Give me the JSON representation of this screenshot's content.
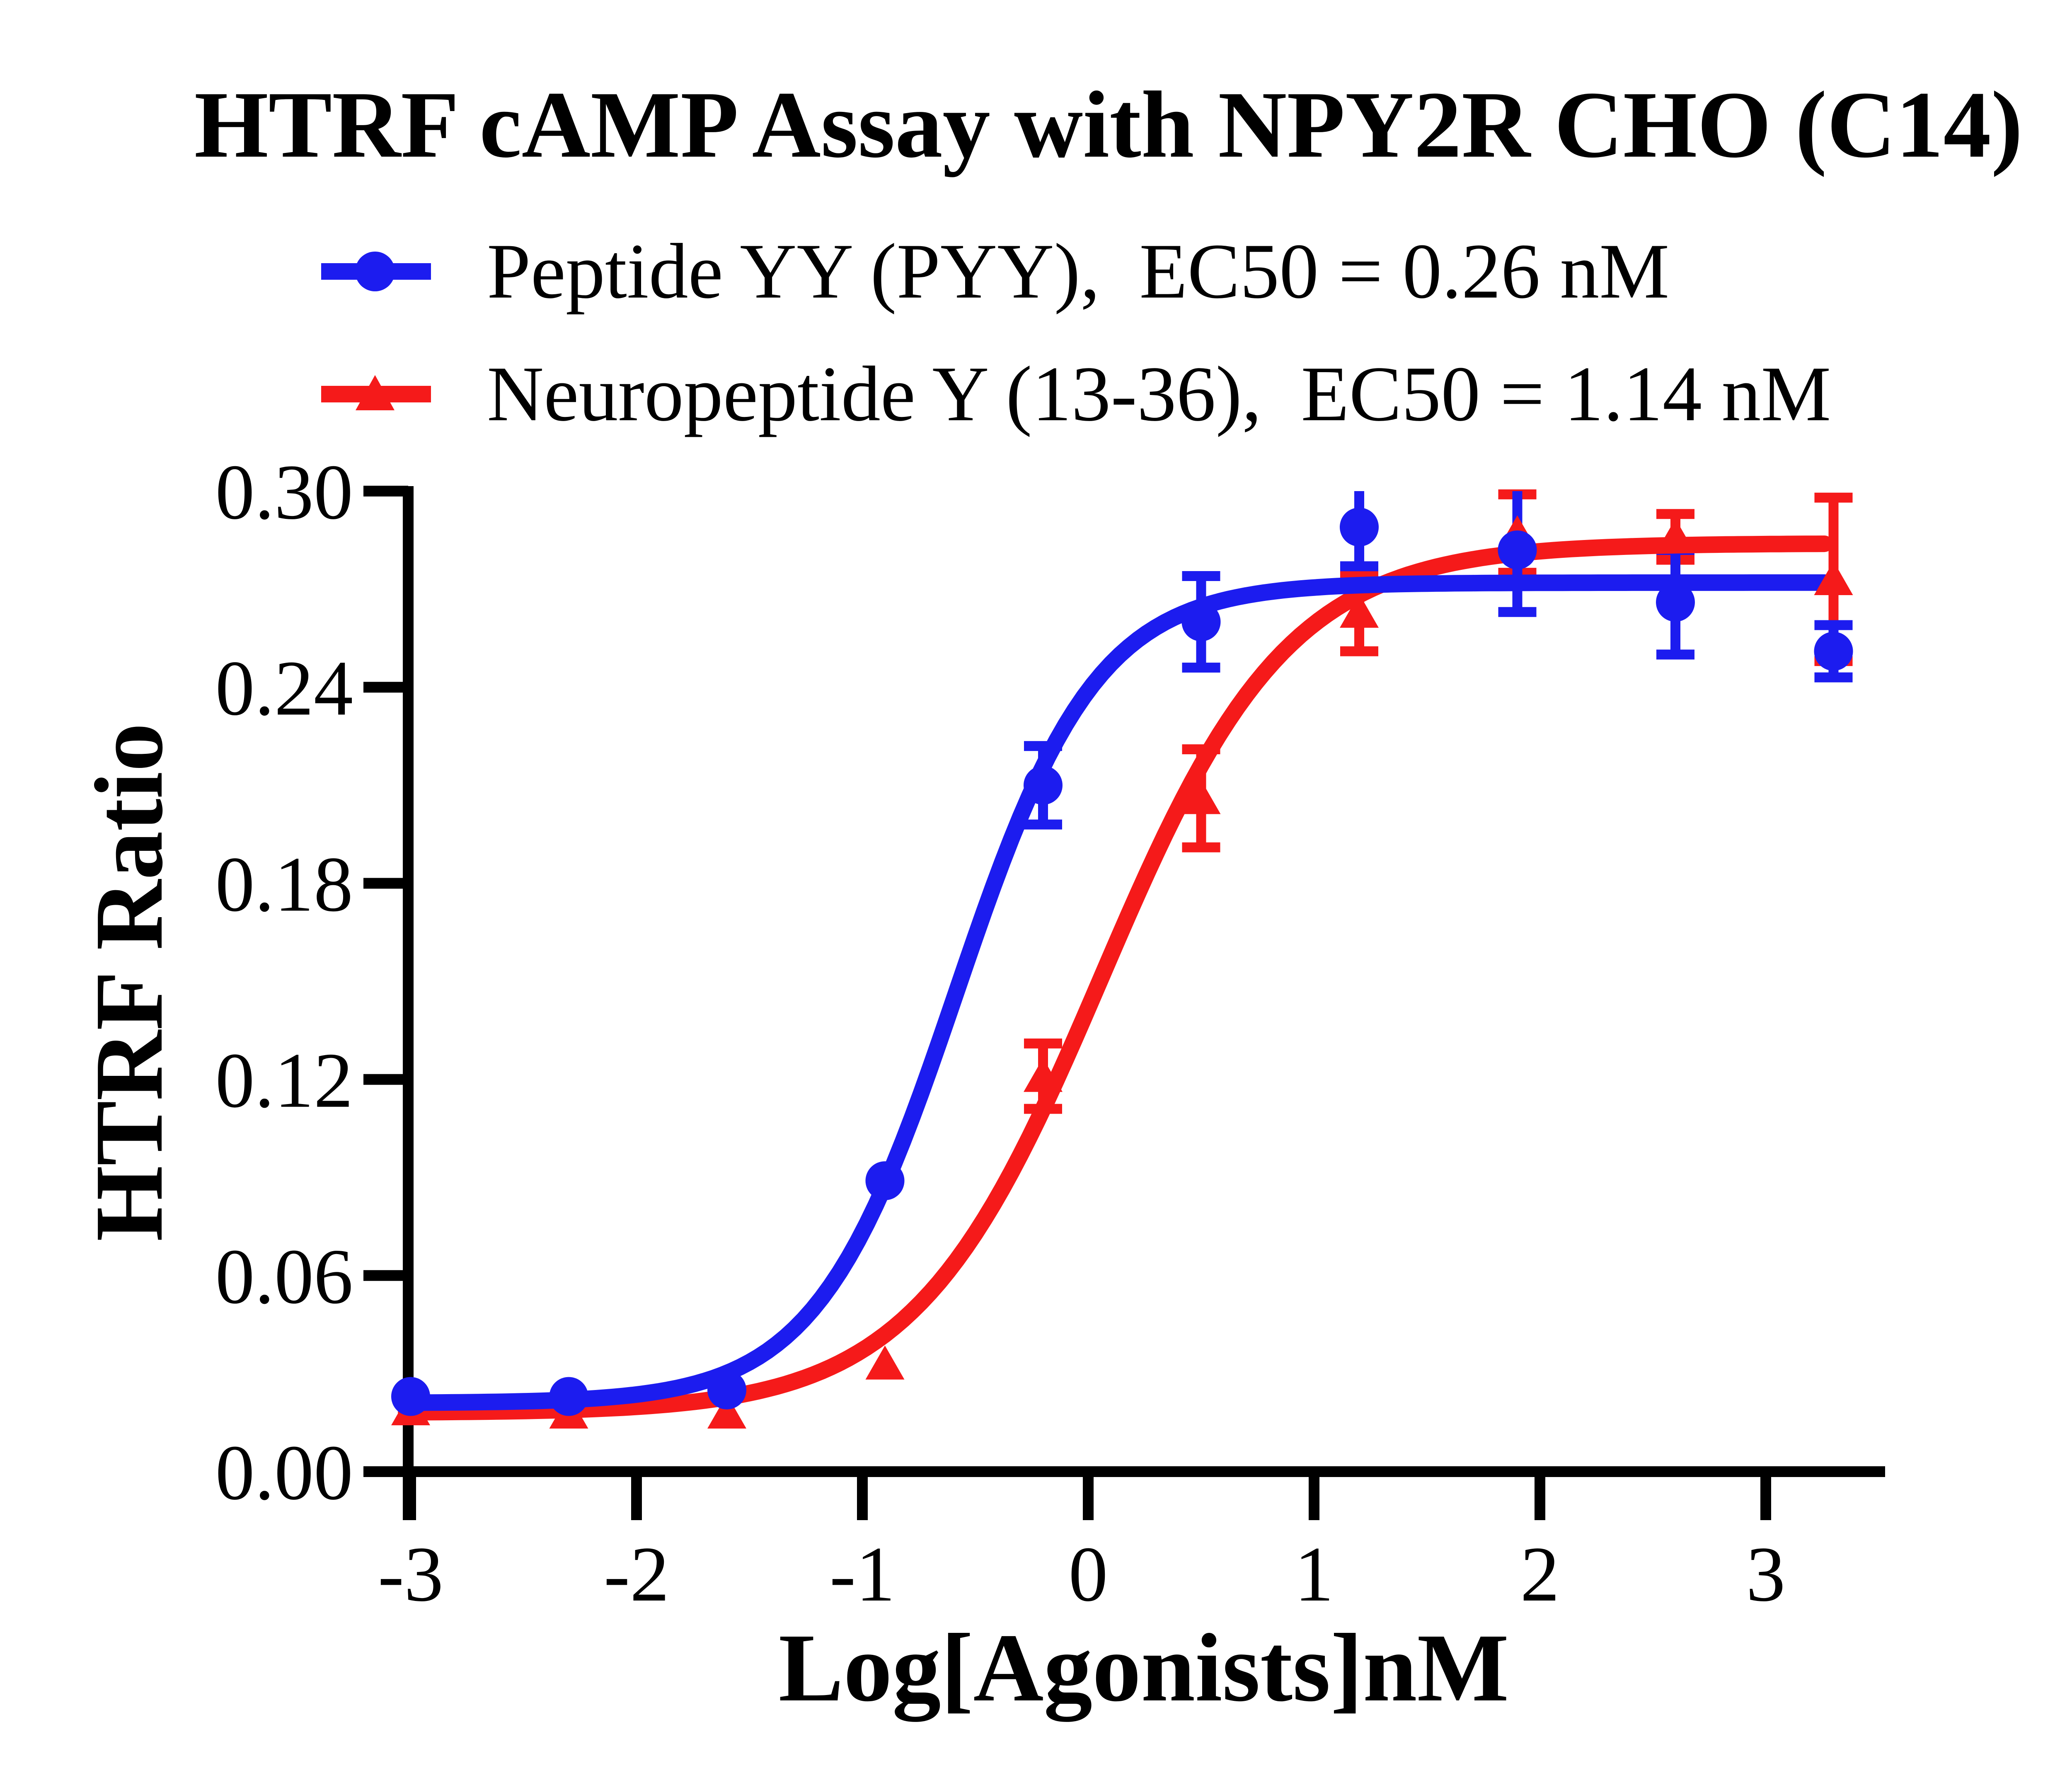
{
  "title": "HTRF cAMP Assay with NPY2R CHO (C14)",
  "legend": {
    "items": [
      {
        "label": "Peptide YY (PYY),  EC50 = 0.26 nM",
        "series": "pyy",
        "marker": "circle",
        "color": "#1c1cef"
      },
      {
        "label": "Neuropeptide Y (13-36),  EC50 = 1.14 nM",
        "series": "npy1336",
        "marker": "triangle",
        "color": "#f51a1a"
      }
    ]
  },
  "axes": {
    "x": {
      "title": "Log[Agonists]nM",
      "tick_labels": [
        "-3",
        "-2",
        "-1",
        "0",
        "1",
        "2",
        "3"
      ],
      "tick_values": [
        -3,
        -2,
        -1,
        0,
        1,
        2,
        3
      ],
      "range": [
        -3.02,
        3.45
      ]
    },
    "y": {
      "title": "HTRF Ratio",
      "tick_labels": [
        "0.00",
        "0.06",
        "0.12",
        "0.18",
        "0.24",
        "0.30"
      ],
      "tick_values": [
        0.0,
        0.06,
        0.12,
        0.18,
        0.24,
        0.3
      ],
      "range": [
        0,
        0.3
      ]
    }
  },
  "chart_data": {
    "type": "scatter",
    "x_axis_label": "Log[Agonists]nM",
    "y_axis_label": "HTRF Ratio",
    "x_scale": "log-concentration (log10 nM)",
    "ylim": [
      0,
      0.3
    ],
    "xlim": [
      -3.02,
      3.45
    ],
    "grid": false,
    "legend_position": "top-left above plot",
    "series": [
      {
        "name": "Peptide YY (PYY)",
        "ec50_label": "EC50 = 0.26 nM",
        "ec50_nM": 0.26,
        "color": "#1c1cef",
        "marker": "circle",
        "x_log": [
          -3.0,
          -2.3,
          -1.6,
          -0.9,
          -0.2,
          0.5,
          1.2,
          1.9,
          2.6,
          3.3
        ],
        "y": [
          0.023,
          0.023,
          0.025,
          0.089,
          0.21,
          0.26,
          0.289,
          0.282,
          0.266,
          0.251
        ],
        "err": [
          0,
          0,
          0,
          0,
          0.012,
          0.014,
          0.012,
          0.019,
          0.016,
          0.008
        ],
        "fit": {
          "model": "4PL sigmoid",
          "bottom": 0.021,
          "top": 0.272,
          "logec50": -0.585,
          "hill": 1.4
        }
      },
      {
        "name": "Neuropeptide Y (13-36)",
        "ec50_label": "EC50 = 1.14 nM",
        "ec50_nM": 1.14,
        "color": "#f51a1a",
        "marker": "triangle",
        "x_log": [
          -3.0,
          -2.3,
          -1.6,
          -0.9,
          -0.2,
          0.5,
          1.2,
          1.9,
          2.6,
          3.3
        ],
        "y": [
          0.019,
          0.018,
          0.018,
          0.033,
          0.121,
          0.206,
          0.263,
          0.287,
          0.286,
          0.273
        ],
        "err": [
          0,
          0,
          0,
          0,
          0.01,
          0.015,
          0.012,
          0.012,
          0.007,
          0.025
        ],
        "fit": {
          "model": "4PL sigmoid",
          "bottom": 0.018,
          "top": 0.284,
          "logec50": 0.057,
          "hill": 1.05
        }
      }
    ]
  }
}
